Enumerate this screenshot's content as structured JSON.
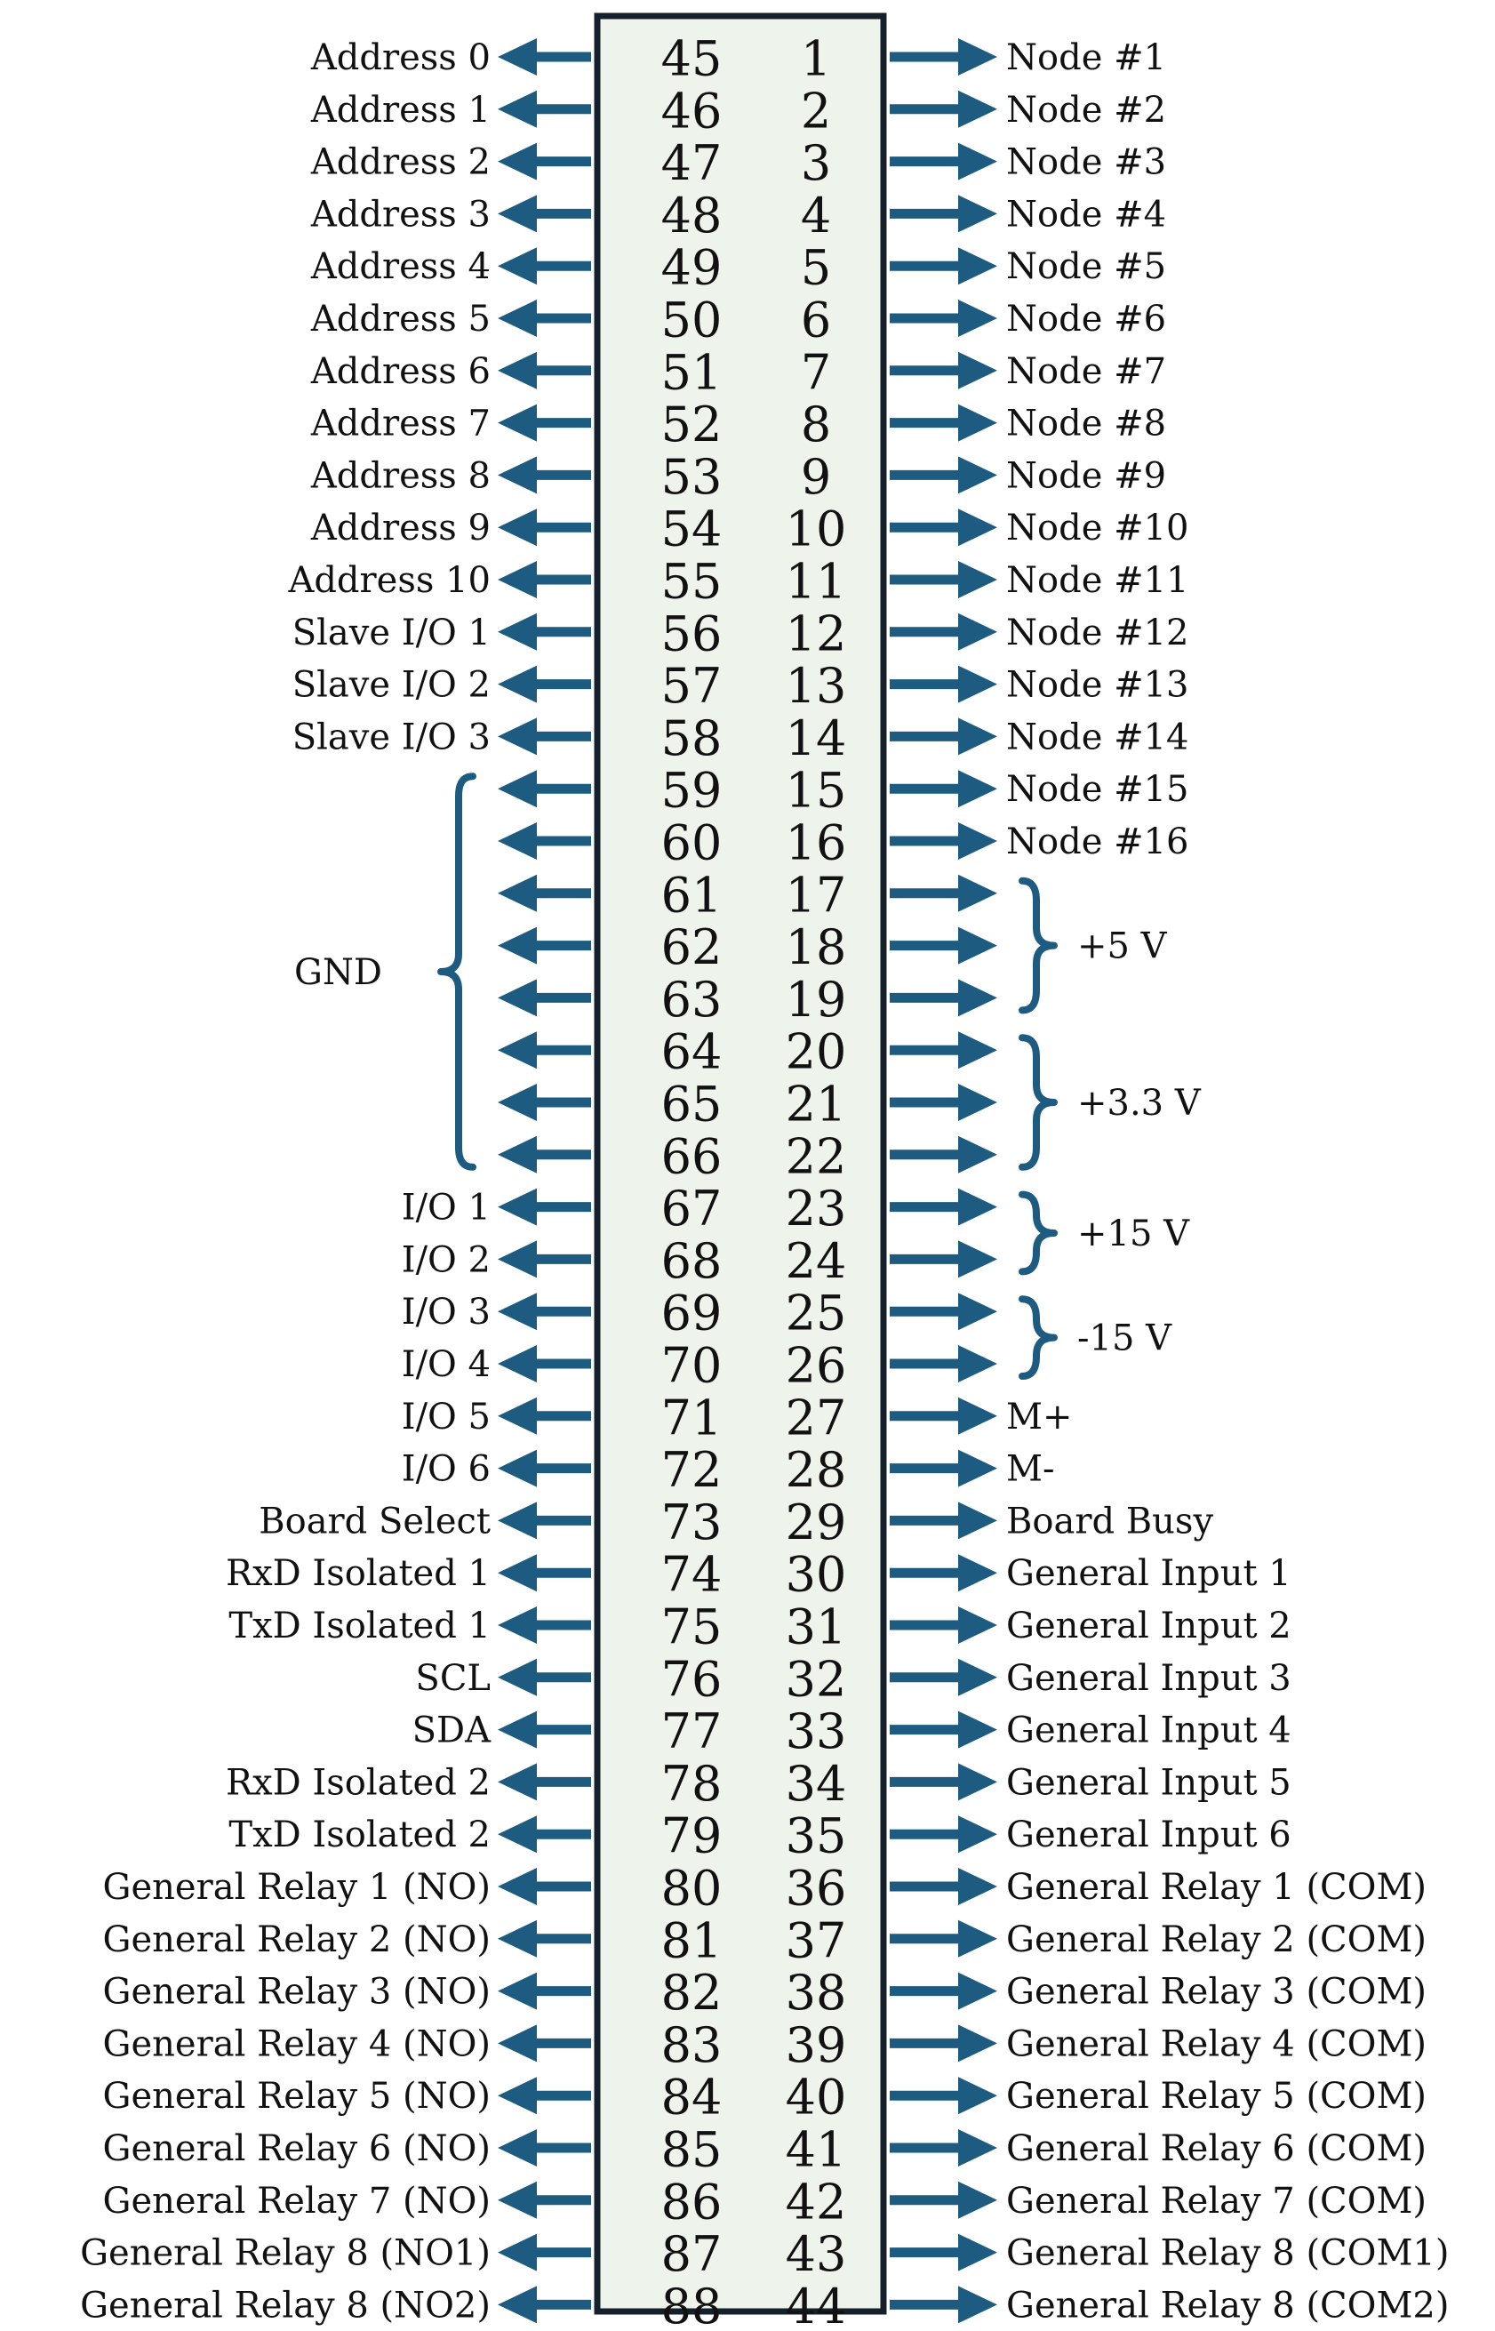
{
  "colors": {
    "arrow": "#1d5c80",
    "connector_fill": "#eef3ec",
    "connector_border": "#15202b",
    "text": "#111111"
  },
  "left_column_pins": [
    "45",
    "46",
    "47",
    "48",
    "49",
    "50",
    "51",
    "52",
    "53",
    "54",
    "55",
    "56",
    "57",
    "58",
    "59",
    "60",
    "61",
    "62",
    "63",
    "64",
    "65",
    "66",
    "67",
    "68",
    "69",
    "70",
    "71",
    "72",
    "73",
    "74",
    "75",
    "76",
    "77",
    "78",
    "79",
    "80",
    "81",
    "82",
    "83",
    "84",
    "85",
    "86",
    "87",
    "88"
  ],
  "right_column_pins": [
    "1",
    "2",
    "3",
    "4",
    "5",
    "6",
    "7",
    "8",
    "9",
    "10",
    "11",
    "12",
    "13",
    "14",
    "15",
    "16",
    "17",
    "18",
    "19",
    "20",
    "21",
    "22",
    "23",
    "24",
    "25",
    "26",
    "27",
    "28",
    "29",
    "30",
    "31",
    "32",
    "33",
    "34",
    "35",
    "36",
    "37",
    "38",
    "39",
    "40",
    "41",
    "42",
    "43",
    "44"
  ],
  "left_labels": [
    "Address 0",
    "Address 1",
    "Address 2",
    "Address 3",
    "Address 4",
    "Address 5",
    "Address 6",
    "Address 7",
    "Address 8",
    "Address 9",
    "Address 10",
    "Slave I/O 1",
    "Slave I/O 2",
    "Slave I/O 3",
    "",
    "",
    "",
    "",
    "",
    "",
    "",
    "",
    "I/O 1",
    "I/O 2",
    "I/O 3",
    "I/O 4",
    "I/O 5",
    "I/O 6",
    "Board Select",
    "RxD Isolated 1",
    "TxD Isolated 1",
    "SCL",
    "SDA",
    "RxD Isolated 2",
    "TxD Isolated 2",
    "General Relay 1 (NO)",
    "General Relay 2 (NO)",
    "General Relay 3 (NO)",
    "General Relay 4 (NO)",
    "General Relay 5 (NO)",
    "General Relay 6 (NO)",
    "General Relay 7 (NO)",
    "General Relay 8 (NO1)",
    "General Relay 8 (NO2)"
  ],
  "right_labels": [
    "Node #1",
    "Node #2",
    "Node #3",
    "Node #4",
    "Node #5",
    "Node #6",
    "Node #7",
    "Node #8",
    "Node #9",
    "Node #10",
    "Node #11",
    "Node #12",
    "Node #13",
    "Node #14",
    "Node #15",
    "Node #16",
    "",
    "",
    "",
    "",
    "",
    "",
    "",
    "",
    "",
    "",
    "M+",
    "M-",
    "Board Busy",
    "General Input 1",
    "General Input 2",
    "General Input 3",
    "General Input 4",
    "General Input 5",
    "General Input 6",
    "General Relay 1 (COM)",
    "General Relay 2 (COM)",
    "General Relay 3 (COM)",
    "General Relay 4 (COM)",
    "General Relay 5 (COM)",
    "General Relay 6 (COM)",
    "General Relay 7 (COM)",
    "General Relay 8 (COM1)",
    "General Relay 8 (COM2)"
  ],
  "left_groups": [
    {
      "label": "GND",
      "from": 14,
      "to": 21
    }
  ],
  "right_groups": [
    {
      "label": "+5 V",
      "from": 16,
      "to": 18
    },
    {
      "label": "+3.3 V",
      "from": 19,
      "to": 21
    },
    {
      "label": "+15 V",
      "from": 22,
      "to": 23
    },
    {
      "label": "-15 V",
      "from": 24,
      "to": 25
    }
  ]
}
